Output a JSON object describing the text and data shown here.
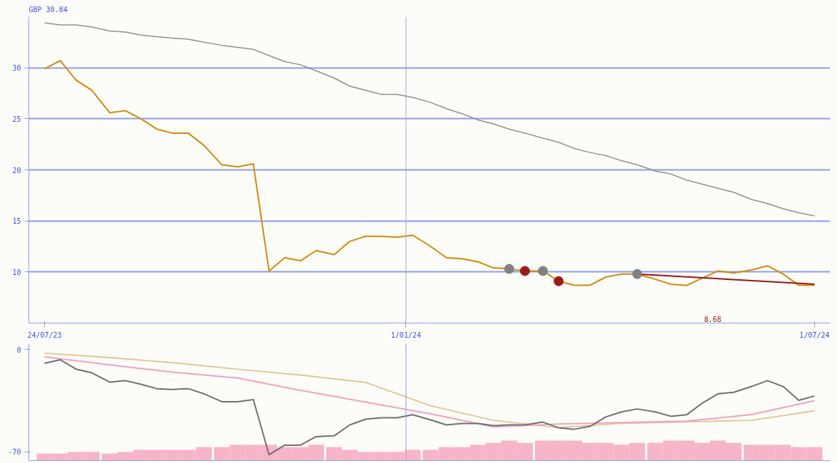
{
  "chart_data": [
    {
      "type": "line",
      "title": "GBP 30.84",
      "x": [
        "2023-07-24",
        "2023-07-31",
        "2023-08-07",
        "2023-08-14",
        "2023-08-22",
        "2023-08-29",
        "2023-09-05",
        "2023-09-12",
        "2023-09-19",
        "2023-09-26",
        "2023-10-03",
        "2023-10-11",
        "2023-10-18",
        "2023-10-25",
        "2023-11-01",
        "2023-11-08",
        "2023-11-15",
        "2023-11-22",
        "2023-11-30",
        "2023-12-07",
        "2023-12-14",
        "2023-12-21",
        "2023-12-28",
        "2024-01-04",
        "2024-01-12",
        "2024-01-19",
        "2024-01-26",
        "2024-02-02",
        "2024-02-09",
        "2024-02-16",
        "2024-02-23",
        "2024-03-02",
        "2024-03-09",
        "2024-03-16",
        "2024-03-23",
        "2024-03-30",
        "2024-04-06",
        "2024-04-13",
        "2024-04-21",
        "2024-04-28",
        "2024-05-05",
        "2024-05-12",
        "2024-05-19",
        "2024-05-26",
        "2024-06-03",
        "2024-06-10",
        "2024-06-17",
        "2024-06-24",
        "2024-07-01"
      ],
      "xlim": [
        "2023-07-17",
        "2024-07-08"
      ],
      "xticks": [
        {
          "value": "2023-07-24",
          "label": "24/07/23"
        },
        {
          "value": "2024-01-01",
          "label": "1/01/24"
        },
        {
          "value": "2024-07-01",
          "label": "1/07/24"
        }
      ],
      "ylim": [
        5,
        35
      ],
      "yticks": [
        10,
        15,
        20,
        25,
        30
      ],
      "grid": "y",
      "ref_lines": [
        {
          "axis": "x",
          "value": "2024-01-01",
          "label": null,
          "color": "#a8a8c8"
        }
      ],
      "annotations": [
        "8.68"
      ],
      "series": [
        {
          "color": "#909090",
          "values": [
            34.4,
            34.2,
            34.2,
            34.0,
            33.6,
            33.5,
            33.2,
            33.05,
            32.9,
            32.8,
            32.5,
            32.2,
            32.0,
            31.8,
            31.2,
            30.6,
            30.3,
            29.7,
            29.0,
            28.2,
            27.8,
            27.4,
            27.4,
            27.1,
            26.6,
            26.0,
            25.5,
            24.9,
            24.5,
            24.0,
            23.6,
            23.1,
            22.7,
            22.1,
            21.7,
            21.4,
            20.9,
            20.5,
            19.9,
            19.6,
            19.0,
            18.6,
            18.2,
            17.8,
            17.1,
            16.7,
            16.2,
            15.8,
            15.5
          ]
        },
        {
          "color": "#d08c00",
          "values": [
            29.9,
            30.7,
            28.8,
            27.8,
            25.6,
            25.8,
            25.0,
            24.0,
            23.6,
            23.6,
            22.4,
            20.5,
            20.3,
            20.6,
            10.1,
            11.4,
            11.1,
            12.1,
            11.7,
            13.0,
            13.5,
            13.5,
            13.4,
            13.6,
            12.5,
            11.4,
            11.3,
            11.0,
            10.4,
            10.3,
            10.1,
            10.1,
            9.1,
            8.7,
            8.7,
            9.5,
            9.8,
            9.8,
            9.3,
            8.8,
            8.68,
            9.4,
            10.1,
            9.9,
            10.2,
            10.6,
            9.8,
            8.7,
            8.7
          ]
        },
        {
          "type": "line",
          "color": "#a01010",
          "x": [
            "2024-04-13",
            "2024-07-01"
          ],
          "values": [
            9.8,
            8.8
          ]
        },
        {
          "type": "scatter",
          "marker": "circle",
          "color": "#808080",
          "x": [
            "2024-02-16",
            "2024-03-02",
            "2024-04-13"
          ],
          "values": [
            10.3,
            10.1,
            9.8
          ]
        },
        {
          "type": "scatter",
          "marker": "circle",
          "color": "#a01818",
          "x": [
            "2024-02-23",
            "2024-03-09"
          ],
          "values": [
            10.1,
            9.1
          ]
        }
      ]
    },
    {
      "type": "line",
      "x": [
        "2023-07-24",
        "2023-07-31",
        "2023-08-07",
        "2023-08-14",
        "2023-08-22",
        "2023-08-29",
        "2023-09-05",
        "2023-09-12",
        "2023-09-19",
        "2023-09-26",
        "2023-10-03",
        "2023-10-11",
        "2023-10-18",
        "2023-10-25",
        "2023-11-01",
        "2023-11-08",
        "2023-11-15",
        "2023-11-22",
        "2023-11-30",
        "2023-12-07",
        "2023-12-14",
        "2023-12-21",
        "2023-12-28",
        "2024-01-04",
        "2024-01-12",
        "2024-01-19",
        "2024-01-26",
        "2024-02-02",
        "2024-02-09",
        "2024-02-16",
        "2024-02-23",
        "2024-03-02",
        "2024-03-09",
        "2024-03-16",
        "2024-03-23",
        "2024-03-30",
        "2024-04-06",
        "2024-04-13",
        "2024-04-21",
        "2024-04-28",
        "2024-05-05",
        "2024-05-12",
        "2024-05-19",
        "2024-05-26",
        "2024-06-03",
        "2024-06-10",
        "2024-06-17",
        "2024-06-24",
        "2024-07-01"
      ],
      "xlim": [
        "2023-07-17",
        "2024-07-08"
      ],
      "ylim": [
        -76,
        4
      ],
      "yticks": [
        0,
        -70
      ],
      "tick_labels": "y",
      "ref_lines": [
        {
          "axis": "x",
          "value": "2024-01-01",
          "label": null,
          "color": "#8c9cf0"
        }
      ],
      "series": [
        {
          "type": "bar",
          "color": "#f8b4c8",
          "base": [
            -76,
            -76,
            -76,
            -76,
            -76,
            -76,
            -76,
            -76,
            -76,
            -76,
            -76,
            -76,
            -76,
            -76,
            -76,
            -76,
            -76,
            -76,
            -76,
            -76,
            -76,
            -76,
            -76,
            -76,
            -76,
            -76,
            -76,
            -76,
            -76,
            -76,
            -76,
            -76,
            -76,
            -76,
            -76,
            -76,
            -76,
            -76,
            -76,
            -76,
            -76,
            -76,
            -76,
            -76,
            -76,
            -76,
            -76,
            -76,
            -76
          ],
          "values": [
            4.7,
            4.7,
            5.8,
            5.8,
            4.7,
            5.8,
            7.3,
            7.3,
            7.3,
            7.3,
            9.2,
            9.2,
            10.7,
            10.7,
            10.7,
            9.2,
            9.2,
            10.7,
            9.2,
            7.3,
            5.8,
            5.8,
            5.8,
            7.3,
            7.3,
            9.2,
            9.2,
            10.7,
            12.1,
            13.6,
            12.1,
            13.6,
            13.6,
            13.6,
            12.1,
            12.1,
            10.7,
            12.1,
            12.1,
            13.6,
            13.6,
            12.1,
            13.6,
            12.1,
            10.7,
            10.7,
            10.7,
            9.2,
            9.2
          ]
        },
        {
          "type": "line",
          "color": "#e0c890",
          "x": [
            "2023-07-24",
            "2023-08-22",
            "2023-09-19",
            "2023-10-18",
            "2023-11-15",
            "2023-12-14",
            "2024-01-12",
            "2024-02-09",
            "2024-03-09",
            "2024-04-06",
            "2024-05-05",
            "2024-06-03",
            "2024-07-01"
          ],
          "values": [
            -2.5,
            -5.5,
            -9,
            -13.5,
            -17.5,
            -22.5,
            -38.5,
            -48.5,
            -53.5,
            -50.5,
            -49.5,
            -48.5,
            -42
          ]
        },
        {
          "type": "line",
          "color": "#f4a0c0",
          "x": [
            "2023-07-24",
            "2023-08-22",
            "2023-09-19",
            "2023-10-18",
            "2023-11-15",
            "2023-12-14",
            "2024-01-12",
            "2024-02-09",
            "2024-03-09",
            "2024-04-06",
            "2024-05-05",
            "2024-06-03",
            "2024-07-01"
          ],
          "values": [
            -5,
            -10.5,
            -15.5,
            -19.5,
            -28,
            -36,
            -44,
            -53,
            -51,
            -50,
            -49,
            -44.5,
            -35
          ]
        },
        {
          "color": "#707070",
          "values": [
            -9.4,
            -7,
            -13.4,
            -15.9,
            -22.3,
            -21.3,
            -23.8,
            -26.8,
            -27.3,
            -26.8,
            -30.3,
            -35.7,
            -35.7,
            -34.3,
            -72,
            -65.5,
            -65.5,
            -59.6,
            -59.1,
            -51.6,
            -47.7,
            -46.7,
            -46.7,
            -44.7,
            -48.2,
            -51.6,
            -50.6,
            -50.6,
            -52.1,
            -51.6,
            -51.6,
            -49.7,
            -53.6,
            -54.6,
            -52.6,
            -46.2,
            -42.7,
            -40.7,
            -42.7,
            -45.7,
            -44.7,
            -36.7,
            -30.3,
            -29.3,
            -25.3,
            -21.3,
            -25.3,
            -34.8,
            -31.8
          ]
        }
      ]
    }
  ]
}
